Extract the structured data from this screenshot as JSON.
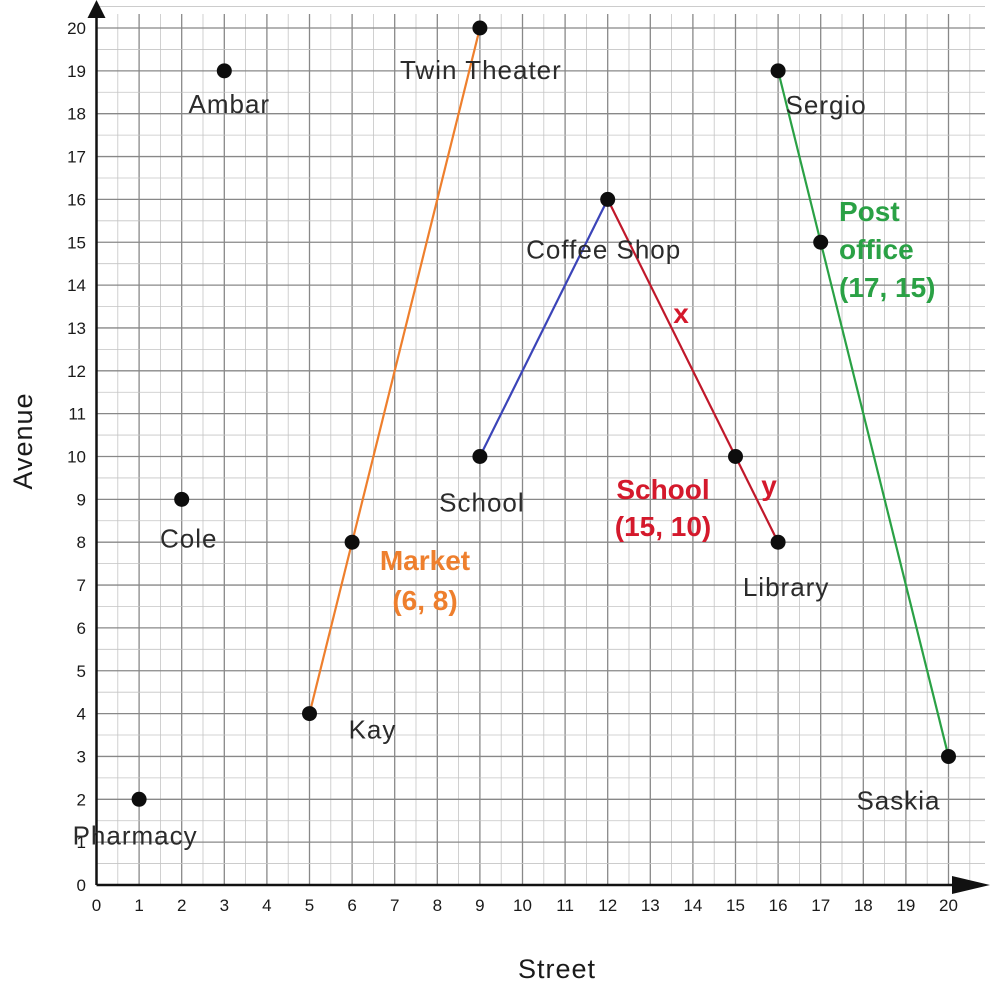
{
  "chart_data": {
    "type": "scatter",
    "xlabel": "Street",
    "ylabel": "Avenue",
    "xlim": [
      0,
      20
    ],
    "ylim": [
      0,
      20
    ],
    "grid": true,
    "points": [
      {
        "name": "Pharmacy",
        "x": 1,
        "y": 2
      },
      {
        "name": "Cole",
        "x": 2,
        "y": 9
      },
      {
        "name": "Ambar",
        "x": 3,
        "y": 19
      },
      {
        "name": "Kay",
        "x": 5,
        "y": 4
      },
      {
        "name": "Market",
        "x": 6,
        "y": 8
      },
      {
        "name": "Twin Theater",
        "x": 9,
        "y": 20
      },
      {
        "name": "School",
        "x": 9,
        "y": 10
      },
      {
        "name": "Coffee Shop",
        "x": 12,
        "y": 16
      },
      {
        "name": "School",
        "x": 15,
        "y": 10
      },
      {
        "name": "Library",
        "x": 16,
        "y": 8
      },
      {
        "name": "Sergio",
        "x": 16,
        "y": 19
      },
      {
        "name": "Post office",
        "x": 17,
        "y": 15
      },
      {
        "name": "Saskia",
        "x": 20,
        "y": 3
      }
    ],
    "segments": [
      {
        "from": [
          5,
          4
        ],
        "to": [
          9,
          20
        ],
        "color": "#ee7f2d"
      },
      {
        "from": [
          9,
          10
        ],
        "to": [
          12,
          16
        ],
        "color": "#3b44b8"
      },
      {
        "from": [
          12,
          16
        ],
        "to": [
          16,
          8
        ],
        "color": "#c0182a"
      },
      {
        "from": [
          16,
          19
        ],
        "to": [
          20,
          3
        ],
        "color": "#2aa145"
      }
    ],
    "annotations": [
      {
        "lines": [
          "Market",
          "(6, 8)"
        ],
        "color": "#ee7f2d"
      },
      {
        "lines": [
          "School",
          "(15, 10)"
        ],
        "color": "#d4192c"
      },
      {
        "lines": [
          "Post",
          "office",
          "(17, 15)"
        ],
        "color": "#2aa145"
      },
      {
        "lines": [
          "x"
        ],
        "color": "#d4192c"
      },
      {
        "lines": [
          "y"
        ],
        "color": "#d4192c"
      }
    ]
  }
}
